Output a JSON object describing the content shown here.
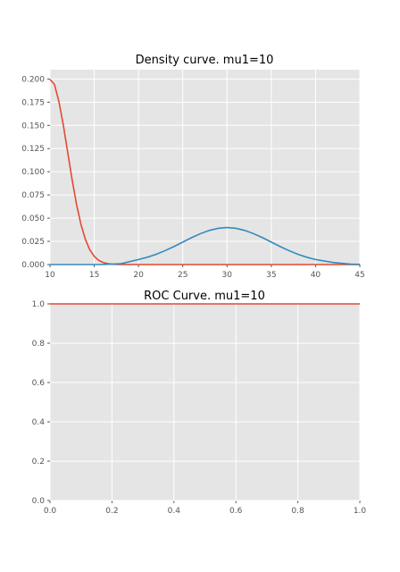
{
  "chart_data": [
    {
      "type": "line",
      "title": "Density curve. mu1=10",
      "xlabel": "",
      "ylabel": "",
      "xlim": [
        10,
        45
      ],
      "ylim": [
        0,
        0.21
      ],
      "xticks": [
        "10",
        "15",
        "20",
        "25",
        "30",
        "35",
        "40",
        "45"
      ],
      "yticks": [
        "0.000",
        "0.025",
        "0.050",
        "0.075",
        "0.100",
        "0.125",
        "0.150",
        "0.175",
        "0.200"
      ],
      "grid": true,
      "series": [
        {
          "color": "#E24A33",
          "x": [
            10,
            10.5,
            11,
            11.5,
            12,
            12.5,
            13,
            13.5,
            14,
            14.5,
            15,
            15.5,
            16,
            16.5,
            17,
            17.5,
            18,
            20,
            25,
            30,
            35,
            40,
            45
          ],
          "y": [
            0.1995,
            0.1942,
            0.176,
            0.1506,
            0.121,
            0.0913,
            0.0648,
            0.0431,
            0.027,
            0.0158,
            0.0088,
            0.0045,
            0.0022,
            0.001,
            0.0004,
            0.0002,
            0.0001,
            0.0,
            0.0,
            0.0,
            0.0,
            0.0,
            0.0
          ]
        },
        {
          "color": "#348ABD",
          "x": [
            10,
            12,
            14,
            16,
            18,
            20,
            21,
            22,
            23,
            24,
            25,
            26,
            27,
            28,
            29,
            30,
            31,
            32,
            33,
            34,
            35,
            36,
            37,
            38,
            39,
            40,
            42,
            44,
            45
          ],
          "y": [
            0.0,
            0.0,
            0.0,
            0.0001,
            0.0009,
            0.0054,
            0.0079,
            0.0111,
            0.015,
            0.0194,
            0.0242,
            0.029,
            0.0333,
            0.0368,
            0.0391,
            0.0399,
            0.0391,
            0.0368,
            0.0333,
            0.029,
            0.0242,
            0.0194,
            0.015,
            0.0111,
            0.0079,
            0.0054,
            0.0022,
            0.0004,
            0.0002
          ]
        }
      ]
    },
    {
      "type": "line",
      "title": "ROC Curve. mu1=10",
      "xlabel": "",
      "ylabel": "",
      "xlim": [
        0,
        1
      ],
      "ylim": [
        0,
        1
      ],
      "xticks": [
        "0.0",
        "0.2",
        "0.4",
        "0.6",
        "0.8",
        "1.0"
      ],
      "yticks": [
        "0.0",
        "0.2",
        "0.4",
        "0.6",
        "0.8",
        "1.0"
      ],
      "grid": true,
      "series": [
        {
          "color": "#E24A33",
          "x": [
            0,
            1
          ],
          "y": [
            1,
            1
          ]
        }
      ]
    }
  ]
}
